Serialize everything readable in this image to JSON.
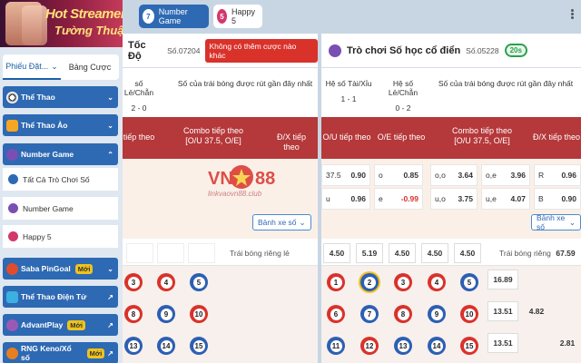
{
  "banner": {
    "line1": "Hot Streamer",
    "line2": "Tường Thuật"
  },
  "sidebar": {
    "tabs": [
      {
        "label": "Phiếu Đặt..."
      },
      {
        "label": "Bảng Cược"
      }
    ],
    "items": [
      {
        "label": "Thể Thao"
      },
      {
        "label": "Thể Thao Ảo"
      },
      {
        "label": "Number Game"
      },
      {
        "label": "Tất Cả Trò Chơi Số"
      },
      {
        "label": "Number Game"
      },
      {
        "label": "Happy 5"
      },
      {
        "label": "Saba PinGoal",
        "badge": "Mới"
      },
      {
        "label": "Thể Thao Điện Tử"
      },
      {
        "label": "AdvantPlay",
        "badge": "Mới"
      },
      {
        "label": "RNG Keno/Xổ số",
        "badge": "Mới"
      }
    ]
  },
  "topbar": {
    "tabs": [
      {
        "num": "7",
        "label": "Number Game"
      },
      {
        "num": "5",
        "label": "Happy 5"
      }
    ]
  },
  "left": {
    "title": "Tốc Độ",
    "number": "Số.07204",
    "warning": "Không có thêm cược nào khác",
    "stat1_label": "số Lẻ/Chẵn",
    "stat1_value": "2 - 0",
    "recent_label": "Số của trái bóng được rút gần đây nhất",
    "recent_balls": [
      "41",
      "31",
      "?"
    ],
    "head": [
      "tiếp theo",
      "Combo tiếp theo\n[O/U 37.5, O/E]",
      "Đ/X tiếp theo"
    ],
    "watermark": "VN88",
    "watermark_sub": "linkvaovn88.club",
    "dropdown": "Bảnh xe số",
    "single_label": "Trái bóng riêng lẻ",
    "grid": [
      "3",
      "4",
      "5",
      "8",
      "9",
      "10",
      "13",
      "14",
      "15"
    ]
  },
  "right": {
    "title": "Trò chơi Số học cổ điển",
    "number": "Số.05228",
    "timer": "20s",
    "stat1_label": "Hệ số Tài/Xỉu",
    "stat1_value": "1 - 1",
    "stat2_label": "Hệ số Lẻ/Chẵn",
    "stat2_value": "0 - 2",
    "recent_label": "Số của trái bóng được rút gần đây nhất",
    "recent_balls": [
      "42",
      "2",
      "?"
    ],
    "head": [
      "O/U tiếp theo",
      "O/E tiếp theo",
      "Combo tiếp theo\n[O/U 37.5, O/E]",
      "Đ/X tiếp theo"
    ],
    "odds": [
      [
        {
          "k": "37.5",
          "v": "0.90"
        },
        {
          "k": "o",
          "v": "0.85"
        },
        {
          "k": "o,o",
          "v": "3.64"
        },
        {
          "k": "o,e",
          "v": "3.96"
        },
        {
          "k": "R",
          "v": "0.96"
        }
      ],
      [
        {
          "k": "u",
          "v": "0.96"
        },
        {
          "k": "e",
          "v": "-0.99",
          "neg": true
        },
        {
          "k": "u,o",
          "v": "3.75"
        },
        {
          "k": "u,e",
          "v": "4.07"
        },
        {
          "k": "B",
          "v": "0.90"
        }
      ]
    ],
    "dropdown": "Bảnh xe số",
    "row2": [
      "4.50",
      "5.19",
      "4.50",
      "4.50",
      "4.50"
    ],
    "single_label": "Trái bóng riêng lẻ",
    "single_value": "67.59",
    "grid": [
      "1",
      "2",
      "3",
      "4",
      "5",
      "6",
      "7",
      "8",
      "9",
      "10",
      "11",
      "12",
      "13",
      "14",
      "15"
    ],
    "side": [
      "16.89",
      "13.51",
      "4.82",
      "13.51",
      "2.81"
    ]
  },
  "colors": {
    "accent": "#2e69b3",
    "header_red": "#b5383a",
    "warning": "#d9322b",
    "timer": "#2aa14b"
  }
}
